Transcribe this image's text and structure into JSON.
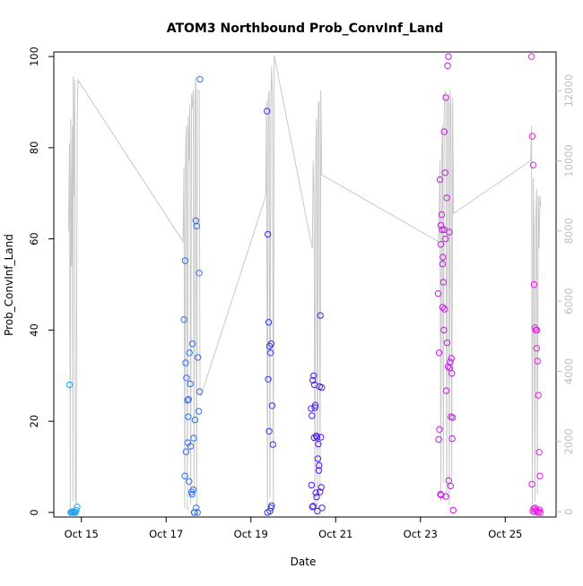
{
  "chart_data": {
    "type": "scatter",
    "title": "ATOM3 Northbound Prob_ConvInf_Land",
    "xlabel": "Date",
    "ylabel": "Prob_ConvInf_Land",
    "x_ticks": [
      "Oct 15",
      "Oct 17",
      "Oct 19",
      "Oct 21",
      "Oct 23",
      "Oct 25"
    ],
    "x_tick_days": [
      15,
      17,
      19,
      21,
      23,
      25
    ],
    "xlim": [
      14.35,
      26.2
    ],
    "ylim": [
      -1,
      101
    ],
    "y_ticks": [
      0,
      20,
      40,
      60,
      80,
      100
    ],
    "y2_ticks": [
      0,
      2000,
      4000,
      6000,
      8000,
      10000,
      12000
    ],
    "y2lim": [
      -150,
      13100
    ],
    "grid": false,
    "legend": "none",
    "colors": {
      "line": "#c8c8c8",
      "axis": "#000000",
      "right_axis": "#bdbdbd",
      "g1": "#2aa1ee",
      "g2": "#2f6fee",
      "g3": "#3333ee",
      "g4": "#4f1bee",
      "g5": "#c51ae8",
      "g6": "#ee1be6"
    },
    "points": [
      {
        "color": "g1",
        "x": [
          14.75,
          14.76,
          14.78,
          14.8,
          14.82,
          14.84,
          14.86,
          14.88,
          14.9,
          14.72
        ],
        "y": [
          0,
          0.1,
          0,
          0.2,
          0,
          0.1,
          0,
          0.5,
          1.2,
          28
        ]
      },
      {
        "color": "g2",
        "x": [
          17.42,
          17.45,
          17.48,
          17.5,
          17.52,
          17.55,
          17.58,
          17.6,
          17.62,
          17.65,
          17.68,
          17.7,
          17.72,
          17.75,
          17.78,
          17.8,
          17.44,
          17.47,
          17.51,
          17.54,
          17.57,
          17.61,
          17.64,
          17.67,
          17.71,
          17.74,
          17.77,
          17.79,
          17.46,
          17.53,
          17.66
        ],
        "y": [
          42.3,
          55.2,
          29.5,
          24.6,
          21,
          35,
          14.5,
          4.5,
          37,
          16.3,
          20.3,
          64,
          62.8,
          34,
          52.5,
          95,
          8,
          13.3,
          15.3,
          6.8,
          28.2,
          4,
          5,
          0,
          1,
          0,
          22.2,
          26.5,
          32.8,
          24.8,
          0
        ]
      },
      {
        "color": "g3",
        "x": [
          19.38,
          19.4,
          19.42,
          19.44,
          19.46,
          19.48,
          19.5,
          19.52,
          19.41,
          19.43,
          19.45,
          19.47,
          19.49,
          19.39
        ],
        "y": [
          88,
          61,
          41.7,
          36.5,
          35,
          37,
          23.4,
          14.9,
          29.2,
          17.8,
          0.3,
          1,
          1.5,
          0
        ]
      },
      {
        "color": "g4",
        "x": [
          20.42,
          20.44,
          20.46,
          20.48,
          20.5,
          20.52,
          20.54,
          20.56,
          20.58,
          20.6,
          20.62,
          20.64,
          20.66,
          20.68,
          20.43,
          20.45,
          20.47,
          20.49,
          20.51,
          20.53,
          20.55,
          20.57,
          20.59,
          20.61,
          20.63,
          20.65,
          20.67
        ],
        "y": [
          22.8,
          21.2,
          29,
          30,
          28,
          23.5,
          16.8,
          16.5,
          11.8,
          9.2,
          27.6,
          43.2,
          5.5,
          1,
          6,
          1.2,
          1.4,
          16.4,
          23,
          4.3,
          3.4,
          0.3,
          15,
          10.3,
          4.5,
          16.5,
          27.4
        ]
      },
      {
        "color": "g5",
        "x": [
          23.42,
          23.44,
          23.46,
          23.48,
          23.5,
          23.52,
          23.54,
          23.56,
          23.58,
          23.6,
          23.62,
          23.64,
          23.66,
          23.68,
          23.7,
          23.72,
          23.74,
          23.76,
          23.43,
          23.45,
          23.47,
          23.49,
          23.51,
          23.53,
          23.55,
          23.57,
          23.59,
          23.61,
          23.63,
          23.65,
          23.67,
          23.69,
          23.71,
          23.73,
          23.75,
          23.77,
          23.48,
          23.52,
          23.56,
          23.6
        ],
        "y": [
          48,
          35,
          73,
          63,
          65.3,
          54.5,
          50.5,
          83.5,
          74.5,
          91,
          69,
          98,
          100,
          61.5,
          33,
          21,
          30.5,
          20.8,
          16,
          18.2,
          4,
          3.8,
          62,
          56,
          40,
          44.6,
          60,
          26.7,
          37.2,
          32,
          7,
          31.7,
          5.8,
          33.8,
          16.2,
          0.5,
          58.8,
          45,
          62,
          3.5
        ]
      },
      {
        "color": "g6",
        "x": [
          25.62,
          25.64,
          25.66,
          25.68,
          25.7,
          25.72,
          25.74,
          25.76,
          25.78,
          25.8,
          25.82,
          25.63,
          25.65,
          25.67,
          25.69,
          25.71,
          25.73,
          25.75,
          25.77,
          25.79,
          25.81,
          25.83
        ],
        "y": [
          100,
          82.5,
          76.2,
          50,
          40.5,
          40,
          36,
          33.2,
          25.7,
          13.2,
          8,
          6.2,
          0.3,
          0.8,
          0.2,
          1,
          0.5,
          40,
          0,
          0.2,
          0.6,
          0
        ]
      }
    ],
    "line_series": {
      "x": [
        14.7,
        14.72,
        14.74,
        14.75,
        14.77,
        14.79,
        14.8,
        14.81,
        14.83,
        14.84,
        14.86,
        14.88,
        14.9,
        14.92,
        17.4,
        17.42,
        17.44,
        17.46,
        17.48,
        17.5,
        17.52,
        17.54,
        17.56,
        17.58,
        17.6,
        17.62,
        17.64,
        17.66,
        17.68,
        17.7,
        17.72,
        17.74,
        17.76,
        17.78,
        17.8,
        17.82,
        19.35,
        19.37,
        19.39,
        19.41,
        19.43,
        19.45,
        19.47,
        19.49,
        19.51,
        19.53,
        19.55,
        20.45,
        20.47,
        20.49,
        20.51,
        20.53,
        20.55,
        20.57,
        20.59,
        20.61,
        20.63,
        20.65,
        20.67,
        23.42,
        23.44,
        23.46,
        23.48,
        23.5,
        23.52,
        23.54,
        23.56,
        23.58,
        23.6,
        23.62,
        23.64,
        23.66,
        23.68,
        23.7,
        23.72,
        23.74,
        23.76,
        23.78,
        25.6,
        25.62,
        25.64,
        25.66,
        25.68,
        25.7,
        25.72,
        25.74,
        25.76,
        25.78,
        25.8,
        25.82,
        25.84
      ],
      "y": [
        8000,
        10500,
        0,
        11200,
        7000,
        11000,
        300,
        12400,
        9000,
        12300,
        400,
        200,
        11000,
        12300,
        7700,
        9800,
        100,
        10400,
        11000,
        50,
        11300,
        10000,
        11600,
        200,
        11900,
        11500,
        12000,
        600,
        11800,
        12400,
        50,
        12000,
        12000,
        12000,
        3400,
        3300,
        9000,
        11700,
        150,
        11700,
        12000,
        400,
        11800,
        12700,
        11600,
        100,
        13000,
        7500,
        10000,
        9000,
        250,
        10400,
        11200,
        0,
        11600,
        11700,
        600,
        12000,
        9600,
        7700,
        8000,
        10000,
        300,
        10200,
        11000,
        800,
        11400,
        12000,
        11700,
        400,
        11800,
        11900,
        200,
        12000,
        11500,
        1000,
        11800,
        8500,
        10000,
        11000,
        0,
        9500,
        8000,
        300,
        8200,
        9200,
        500,
        9000,
        7500,
        9000,
        8700
      ]
    }
  }
}
